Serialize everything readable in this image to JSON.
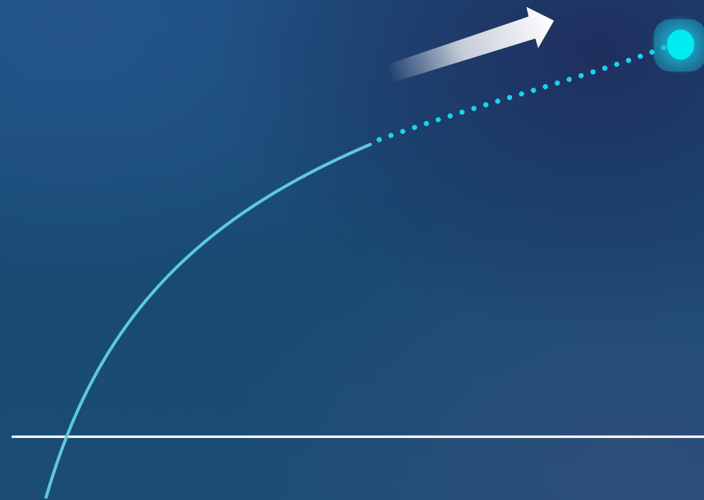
{
  "colors": {
    "background_top": "#245088",
    "background_bottom": "#184a72",
    "curve": "#5ec8dc",
    "dotted_path": "#19d3ee",
    "object": "#00eaf2",
    "object_glow": "#1cc7e0",
    "horizon": "#ffffff",
    "arrow": "#ffffff"
  },
  "icons": {
    "direction_arrow": "arrow-right-up-icon",
    "moving_object": "glowing-dot-icon"
  }
}
